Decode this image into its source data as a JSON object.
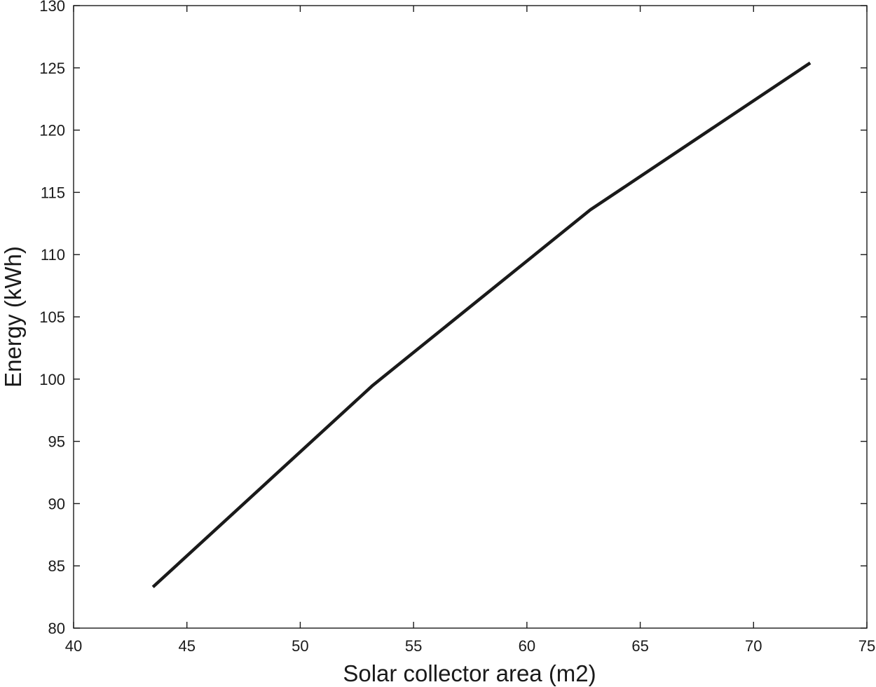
{
  "chart_data": {
    "type": "line",
    "title": "",
    "xlabel": "Solar collector area (m2)",
    "ylabel": "Energy (kWh)",
    "xlim": [
      40,
      75
    ],
    "ylim": [
      80,
      130
    ],
    "xticks": [
      40,
      45,
      50,
      55,
      60,
      65,
      70,
      75
    ],
    "yticks": [
      80,
      85,
      90,
      95,
      100,
      105,
      110,
      115,
      120,
      125,
      130
    ],
    "grid": false,
    "box": true,
    "colors": {
      "line": "#1a1a1a",
      "axes": "#1a1a1a"
    },
    "series": [
      {
        "x": [
          43.5,
          53.2,
          62.8,
          72.5
        ],
        "y": [
          83.3,
          99.5,
          113.6,
          125.4
        ]
      }
    ]
  }
}
